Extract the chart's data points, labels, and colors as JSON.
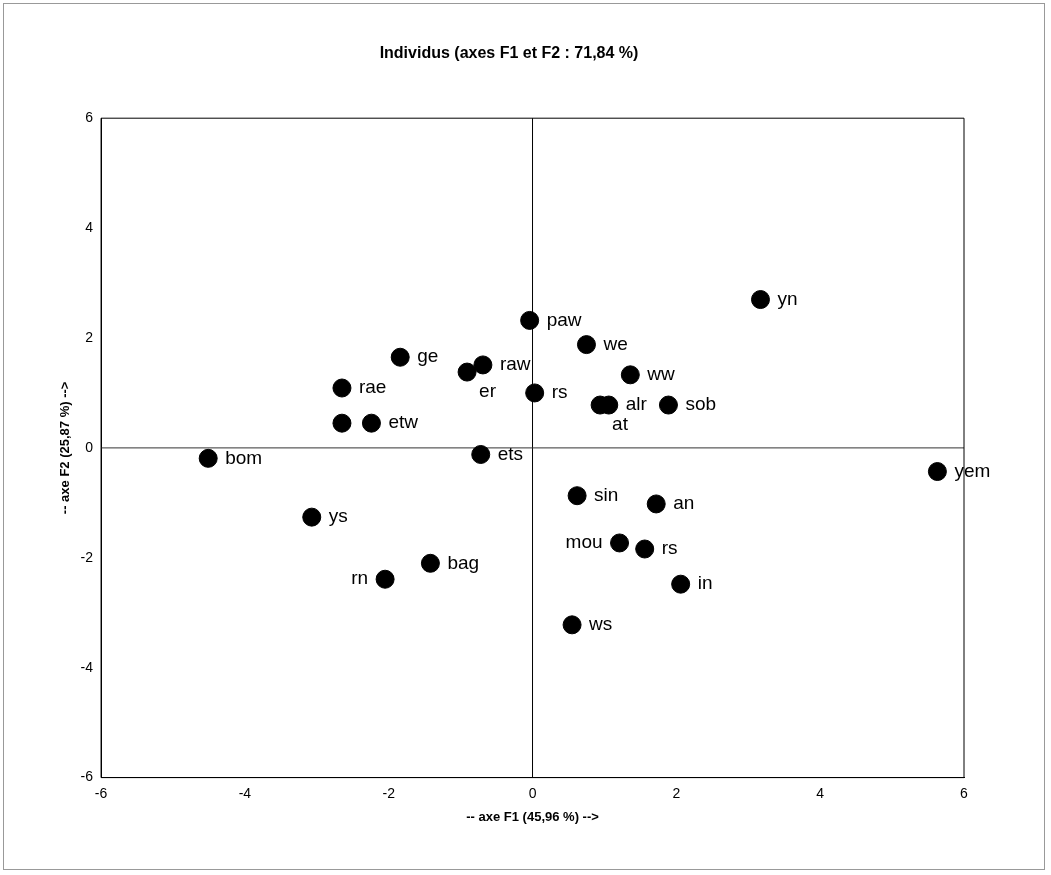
{
  "chart_data": {
    "type": "scatter",
    "title": "Individus (axes F1 et F2 : 71,84 %)",
    "xlabel": "-- axe F1 (45,96 %) -->",
    "ylabel": "-- axe F2 (25,87 %) -->",
    "x": [
      -4.51,
      -3.07,
      -2.05,
      -1.42,
      -2.65,
      -2.65,
      -2.24,
      -1.84,
      -0.91,
      -0.69,
      -0.04,
      0.75,
      1.36,
      0.03,
      0.94,
      1.06,
      1.89,
      -0.72,
      3.17,
      5.63,
      0.62,
      1.72,
      1.21,
      1.56,
      2.06,
      0.55
    ],
    "series": [
      {
        "color": "#000000",
        "values": [
          -0.19,
          -1.26,
          -2.39,
          -2.1,
          1.09,
          0.45,
          0.45,
          1.65,
          1.38,
          1.51,
          2.32,
          1.88,
          1.33,
          1.0,
          0.78,
          0.78,
          0.78,
          -0.12,
          2.7,
          -0.43,
          -0.87,
          -1.02,
          -1.73,
          -1.84,
          -2.48,
          -3.22
        ]
      }
    ],
    "marker": "circle",
    "grid": false,
    "legend": false,
    "xlim": [
      -6,
      6
    ],
    "xticks": [
      -6,
      -4,
      -2,
      0,
      2,
      4,
      6
    ],
    "ylim": [
      -6,
      6
    ],
    "yticks": [
      -6,
      -4,
      -2,
      0,
      2,
      4,
      6
    ],
    "ref_lines": [
      {
        "axis": "x",
        "value": 0,
        "color": "#000000"
      },
      {
        "axis": "y",
        "value": 0,
        "color": "#333333"
      }
    ],
    "annotations": [
      {
        "text": "bom",
        "x": -4.51,
        "y": -0.19
      },
      {
        "text": "ys",
        "x": -3.07,
        "y": -1.26
      },
      {
        "text": "rn",
        "x": -2.05,
        "y": -2.39
      },
      {
        "text": "bag",
        "x": -1.42,
        "y": -2.1
      },
      {
        "text": "rae",
        "x": -2.65,
        "y": 1.09
      },
      {
        "text": "etw",
        "x": -2.24,
        "y": 0.45
      },
      {
        "text": "ge",
        "x": -1.84,
        "y": 1.65
      },
      {
        "text": "er",
        "x": -0.91,
        "y": 1.38
      },
      {
        "text": "raw",
        "x": -0.69,
        "y": 1.51
      },
      {
        "text": "paw",
        "x": -0.04,
        "y": 2.32
      },
      {
        "text": "we",
        "x": 0.75,
        "y": 1.88
      },
      {
        "text": "ww",
        "x": 1.36,
        "y": 1.33
      },
      {
        "text": "rs",
        "x": 0.03,
        "y": 1.0
      },
      {
        "text": "at",
        "x": 0.94,
        "y": 0.78
      },
      {
        "text": "alr",
        "x": 1.06,
        "y": 0.78
      },
      {
        "text": "sob",
        "x": 1.89,
        "y": 0.78
      },
      {
        "text": "ets",
        "x": -0.72,
        "y": -0.12
      },
      {
        "text": "yn",
        "x": 3.17,
        "y": 2.7
      },
      {
        "text": "yem",
        "x": 5.63,
        "y": -0.43
      },
      {
        "text": "sin",
        "x": 0.62,
        "y": -0.87
      },
      {
        "text": "an",
        "x": 1.72,
        "y": -1.02
      },
      {
        "text": "mou",
        "x": 1.21,
        "y": -1.73
      },
      {
        "text": "rs",
        "x": 1.56,
        "y": -1.84
      },
      {
        "text": "in",
        "x": 2.06,
        "y": -2.48
      },
      {
        "text": "ws",
        "x": 0.55,
        "y": -3.22
      }
    ]
  }
}
